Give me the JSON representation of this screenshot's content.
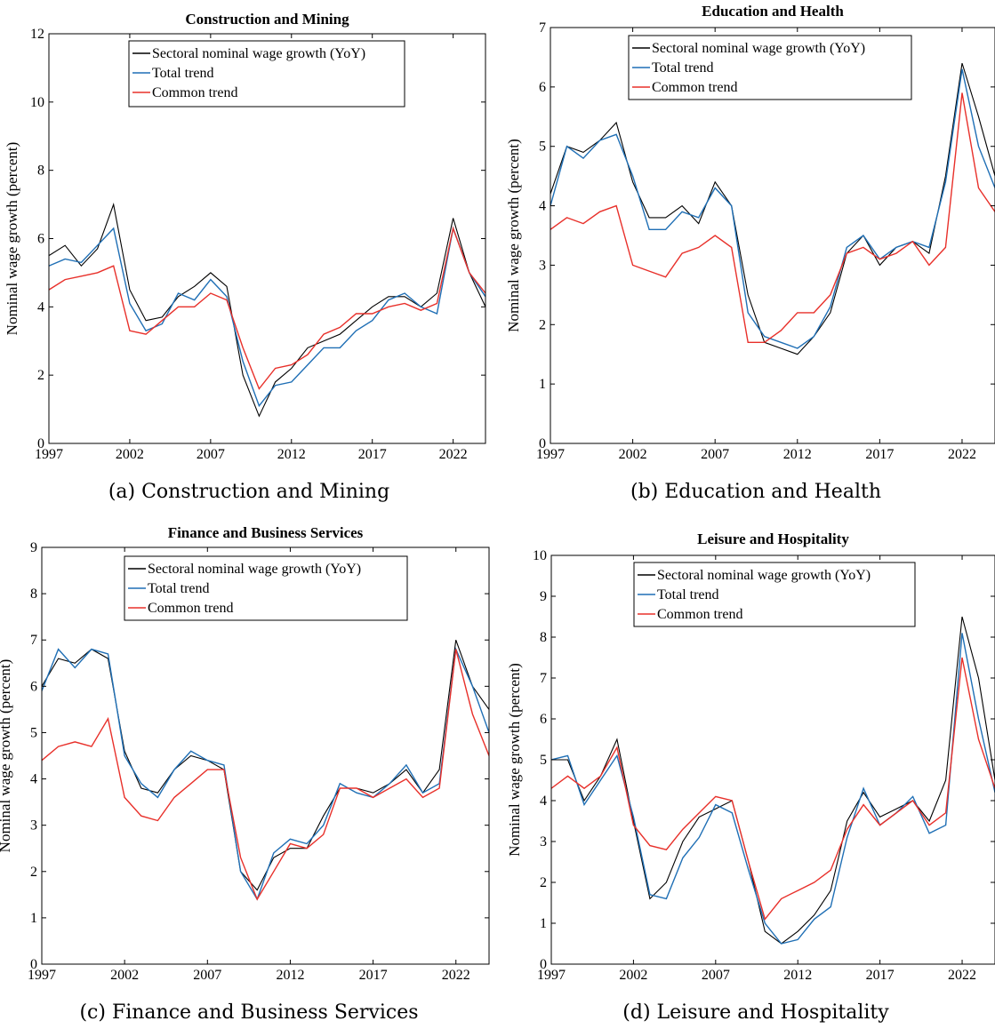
{
  "colors": {
    "sectoral": "#000000",
    "total_trend": "#1f6fb5",
    "common_trend": "#e8302a"
  },
  "legend": [
    "Sectoral nominal wage growth (YoY)",
    "Total trend",
    "Common trend"
  ],
  "chart_data": [
    {
      "type": "line",
      "title": "Construction and Mining",
      "caption": "(a) Construction and Mining",
      "ylabel": "Nominal wage growth (percent)",
      "xlim": [
        1997,
        2024
      ],
      "ylim": [
        0,
        12
      ],
      "xticks": [
        1997,
        2002,
        2007,
        2012,
        2017,
        2022
      ],
      "yticks": [
        0,
        2,
        4,
        6,
        8,
        10,
        12
      ],
      "legend_entries": [
        "Sectoral nominal wage growth (YoY)",
        "Total trend",
        "Common trend"
      ],
      "series": [
        {
          "name": "Sectoral nominal wage growth (YoY)",
          "x": [
            1997,
            1998,
            1999,
            2000,
            2001,
            2002,
            2003,
            2004,
            2005,
            2006,
            2007,
            2008,
            2009,
            2010,
            2011,
            2012,
            2013,
            2014,
            2015,
            2016,
            2017,
            2018,
            2019,
            2020,
            2021,
            2022,
            2023,
            2024
          ],
          "y": [
            5.5,
            5.8,
            5.2,
            5.7,
            7.0,
            4.5,
            3.6,
            3.7,
            4.3,
            4.6,
            5.0,
            4.6,
            2.0,
            0.8,
            1.8,
            2.2,
            2.8,
            3.0,
            3.2,
            3.6,
            4.0,
            4.3,
            4.3,
            4.0,
            4.4,
            6.6,
            5.0,
            4.0
          ]
        },
        {
          "name": "Total trend",
          "x": [
            1997,
            1998,
            1999,
            2000,
            2001,
            2002,
            2003,
            2004,
            2005,
            2006,
            2007,
            2008,
            2009,
            2010,
            2011,
            2012,
            2013,
            2014,
            2015,
            2016,
            2017,
            2018,
            2019,
            2020,
            2021,
            2022,
            2023,
            2024
          ],
          "y": [
            5.2,
            5.4,
            5.3,
            5.8,
            6.3,
            4.1,
            3.3,
            3.5,
            4.4,
            4.2,
            4.8,
            4.3,
            2.4,
            1.1,
            1.7,
            1.8,
            2.3,
            2.8,
            2.8,
            3.3,
            3.6,
            4.2,
            4.4,
            4.0,
            3.8,
            6.3,
            5.0,
            4.3
          ]
        },
        {
          "name": "Common trend",
          "x": [
            1997,
            1998,
            1999,
            2000,
            2001,
            2002,
            2003,
            2004,
            2005,
            2006,
            2007,
            2008,
            2009,
            2010,
            2011,
            2012,
            2013,
            2014,
            2015,
            2016,
            2017,
            2018,
            2019,
            2020,
            2021,
            2022,
            2023,
            2024
          ],
          "y": [
            4.5,
            4.8,
            4.9,
            5.0,
            5.2,
            3.3,
            3.2,
            3.6,
            4.0,
            4.0,
            4.4,
            4.2,
            2.8,
            1.6,
            2.2,
            2.3,
            2.6,
            3.2,
            3.4,
            3.8,
            3.8,
            4.0,
            4.1,
            3.9,
            4.1,
            6.3,
            5.0,
            4.4
          ]
        }
      ]
    },
    {
      "type": "line",
      "title": "Education and Health",
      "caption": "(b) Education and Health",
      "ylabel": "Nominal wage growth (percent)",
      "xlim": [
        1997,
        2024
      ],
      "ylim": [
        0,
        7
      ],
      "xticks": [
        1997,
        2002,
        2007,
        2012,
        2017,
        2022
      ],
      "yticks": [
        0,
        1,
        2,
        3,
        4,
        5,
        6,
        7
      ],
      "legend_entries": [
        "Sectoral nominal wage growth (YoY)",
        "Total trend",
        "Common trend"
      ],
      "series": [
        {
          "name": "Sectoral nominal wage growth (YoY)",
          "x": [
            1997,
            1998,
            1999,
            2000,
            2001,
            2002,
            2003,
            2004,
            2005,
            2006,
            2007,
            2008,
            2009,
            2010,
            2011,
            2012,
            2013,
            2014,
            2015,
            2016,
            2017,
            2018,
            2019,
            2020,
            2021,
            2022,
            2023,
            2024
          ],
          "y": [
            4.2,
            5.0,
            4.9,
            5.1,
            5.4,
            4.4,
            3.8,
            3.8,
            4.0,
            3.7,
            4.4,
            4.0,
            2.5,
            1.7,
            1.6,
            1.5,
            1.8,
            2.2,
            3.2,
            3.5,
            3.0,
            3.3,
            3.4,
            3.2,
            4.5,
            6.4,
            5.5,
            4.5
          ]
        },
        {
          "name": "Total trend",
          "x": [
            1997,
            1998,
            1999,
            2000,
            2001,
            2002,
            2003,
            2004,
            2005,
            2006,
            2007,
            2008,
            2009,
            2010,
            2011,
            2012,
            2013,
            2014,
            2015,
            2016,
            2017,
            2018,
            2019,
            2020,
            2021,
            2022,
            2023,
            2024
          ],
          "y": [
            4.0,
            5.0,
            4.8,
            5.1,
            5.2,
            4.5,
            3.6,
            3.6,
            3.9,
            3.8,
            4.3,
            4.0,
            2.2,
            1.8,
            1.7,
            1.6,
            1.8,
            2.3,
            3.3,
            3.5,
            3.1,
            3.3,
            3.4,
            3.3,
            4.4,
            6.3,
            5.0,
            4.3
          ]
        },
        {
          "name": "Common trend",
          "x": [
            1997,
            1998,
            1999,
            2000,
            2001,
            2002,
            2003,
            2004,
            2005,
            2006,
            2007,
            2008,
            2009,
            2010,
            2011,
            2012,
            2013,
            2014,
            2015,
            2016,
            2017,
            2018,
            2019,
            2020,
            2021,
            2022,
            2023,
            2024
          ],
          "y": [
            3.6,
            3.8,
            3.7,
            3.9,
            4.0,
            3.0,
            2.9,
            2.8,
            3.2,
            3.3,
            3.5,
            3.3,
            1.7,
            1.7,
            1.9,
            2.2,
            2.2,
            2.5,
            3.2,
            3.3,
            3.1,
            3.2,
            3.4,
            3.0,
            3.3,
            5.9,
            4.3,
            3.9
          ]
        }
      ]
    },
    {
      "type": "line",
      "title": "Finance and Business Services",
      "caption": "(c) Finance and Business Services",
      "ylabel": "Nominal wage growth (percent)",
      "xlim": [
        1997,
        2024
      ],
      "ylim": [
        0,
        9
      ],
      "xticks": [
        1997,
        2002,
        2007,
        2012,
        2017,
        2022
      ],
      "yticks": [
        0,
        1,
        2,
        3,
        4,
        5,
        6,
        7,
        8,
        9
      ],
      "legend_entries": [
        "Sectoral nominal wage growth (YoY)",
        "Total trend",
        "Common trend"
      ],
      "series": [
        {
          "name": "Sectoral nominal wage growth (YoY)",
          "x": [
            1997,
            1998,
            1999,
            2000,
            2001,
            2002,
            2003,
            2004,
            2005,
            2006,
            2007,
            2008,
            2009,
            2010,
            2011,
            2012,
            2013,
            2014,
            2015,
            2016,
            2017,
            2018,
            2019,
            2020,
            2021,
            2022,
            2023,
            2024
          ],
          "y": [
            6.0,
            6.6,
            6.5,
            6.8,
            6.6,
            4.6,
            3.8,
            3.7,
            4.2,
            4.5,
            4.4,
            4.2,
            2.0,
            1.6,
            2.3,
            2.5,
            2.5,
            3.2,
            3.8,
            3.8,
            3.7,
            3.9,
            4.2,
            3.7,
            4.2,
            7.0,
            6.0,
            5.5
          ]
        },
        {
          "name": "Total trend",
          "x": [
            1997,
            1998,
            1999,
            2000,
            2001,
            2002,
            2003,
            2004,
            2005,
            2006,
            2007,
            2008,
            2009,
            2010,
            2011,
            2012,
            2013,
            2014,
            2015,
            2016,
            2017,
            2018,
            2019,
            2020,
            2021,
            2022,
            2023,
            2024
          ],
          "y": [
            5.9,
            6.8,
            6.4,
            6.8,
            6.7,
            4.5,
            3.9,
            3.6,
            4.2,
            4.6,
            4.4,
            4.3,
            2.0,
            1.4,
            2.4,
            2.7,
            2.6,
            3.0,
            3.9,
            3.7,
            3.6,
            3.9,
            4.3,
            3.7,
            3.9,
            6.8,
            6.0,
            5.0
          ]
        },
        {
          "name": "Common trend",
          "x": [
            1997,
            1998,
            1999,
            2000,
            2001,
            2002,
            2003,
            2004,
            2005,
            2006,
            2007,
            2008,
            2009,
            2010,
            2011,
            2012,
            2013,
            2014,
            2015,
            2016,
            2017,
            2018,
            2019,
            2020,
            2021,
            2022,
            2023,
            2024
          ],
          "y": [
            4.4,
            4.7,
            4.8,
            4.7,
            5.3,
            3.6,
            3.2,
            3.1,
            3.6,
            3.9,
            4.2,
            4.2,
            2.3,
            1.4,
            2.0,
            2.6,
            2.5,
            2.8,
            3.8,
            3.8,
            3.6,
            3.8,
            4.0,
            3.6,
            3.8,
            6.8,
            5.4,
            4.5
          ]
        }
      ]
    },
    {
      "type": "line",
      "title": "Leisure and Hospitality",
      "caption": "(d) Leisure and Hospitality",
      "ylabel": "Nominal wage growth (percent)",
      "xlim": [
        1997,
        2024
      ],
      "ylim": [
        0,
        10
      ],
      "xticks": [
        1997,
        2002,
        2007,
        2012,
        2017,
        2022
      ],
      "yticks": [
        0,
        1,
        2,
        3,
        4,
        5,
        6,
        7,
        8,
        9,
        10
      ],
      "legend_entries": [
        "Sectoral nominal wage growth (YoY)",
        "Total trend",
        "Common trend"
      ],
      "series": [
        {
          "name": "Sectoral nominal wage growth (YoY)",
          "x": [
            1997,
            1998,
            1999,
            2000,
            2001,
            2002,
            2003,
            2004,
            2005,
            2006,
            2007,
            2008,
            2009,
            2010,
            2011,
            2012,
            2013,
            2014,
            2015,
            2016,
            2017,
            2018,
            2019,
            2020,
            2021,
            2022,
            2023,
            2024
          ],
          "y": [
            5.0,
            5.0,
            4.0,
            4.6,
            5.5,
            3.5,
            1.6,
            2.0,
            3.0,
            3.6,
            3.8,
            4.0,
            2.5,
            0.8,
            0.5,
            0.8,
            1.2,
            1.8,
            3.5,
            4.2,
            3.6,
            3.8,
            4.0,
            3.5,
            4.5,
            8.5,
            7.0,
            4.5
          ]
        },
        {
          "name": "Total trend",
          "x": [
            1997,
            1998,
            1999,
            2000,
            2001,
            2002,
            2003,
            2004,
            2005,
            2006,
            2007,
            2008,
            2009,
            2010,
            2011,
            2012,
            2013,
            2014,
            2015,
            2016,
            2017,
            2018,
            2019,
            2020,
            2021,
            2022,
            2023,
            2024
          ],
          "y": [
            5.0,
            5.1,
            3.9,
            4.5,
            5.1,
            3.6,
            1.7,
            1.6,
            2.6,
            3.1,
            3.9,
            3.7,
            2.3,
            1.0,
            0.5,
            0.6,
            1.1,
            1.4,
            3.1,
            4.3,
            3.4,
            3.7,
            4.1,
            3.2,
            3.4,
            8.1,
            6.0,
            4.2
          ]
        },
        {
          "name": "Common trend",
          "x": [
            1997,
            1998,
            1999,
            2000,
            2001,
            2002,
            2003,
            2004,
            2005,
            2006,
            2007,
            2008,
            2009,
            2010,
            2011,
            2012,
            2013,
            2014,
            2015,
            2016,
            2017,
            2018,
            2019,
            2020,
            2021,
            2022,
            2023,
            2024
          ],
          "y": [
            4.3,
            4.6,
            4.3,
            4.6,
            5.3,
            3.4,
            2.9,
            2.8,
            3.3,
            3.7,
            4.1,
            4.0,
            2.5,
            1.1,
            1.6,
            1.8,
            2.0,
            2.3,
            3.3,
            3.9,
            3.4,
            3.7,
            4.0,
            3.4,
            3.7,
            7.5,
            5.5,
            4.3
          ]
        }
      ]
    }
  ]
}
